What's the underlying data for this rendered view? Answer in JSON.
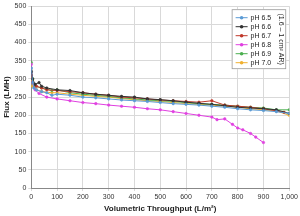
{
  "chart_data": {
    "type": "line",
    "x_label": "Volumetric Throughput (L/m²)",
    "y_label": "Flux (LMH)",
    "xlim": [
      0,
      1000
    ],
    "xticks": [
      0,
      100,
      200,
      300,
      400,
      500,
      600,
      700,
      800,
      900,
      {
        "value": 1000,
        "label": "1,000"
      }
    ],
    "ylim": [
      0,
      500
    ],
    "yticks": [
      0,
      50,
      100,
      150,
      200,
      250,
      300,
      350,
      400,
      450,
      500
    ],
    "grid": true,
    "legend": "upper right",
    "marker": "circle",
    "line_style": "solid",
    "annotations": [
      {
        "text": "(1.6 – 1 cm² AR)"
      }
    ],
    "series": [
      {
        "name": "pH 6.5",
        "color": "#5b9bd5",
        "x": [
          0,
          5,
          10,
          20,
          40,
          60,
          80,
          100,
          150,
          200,
          250,
          300,
          350,
          400,
          450,
          500,
          550,
          600,
          650,
          700,
          750,
          800,
          850,
          900,
          950,
          1000
        ],
        "values": [
          330,
          290,
          275,
          270,
          265,
          262,
          255,
          258,
          255,
          250,
          248,
          245,
          242,
          240,
          238,
          235,
          232,
          230,
          228,
          225,
          222,
          218,
          215,
          213,
          210,
          205
        ]
      },
      {
        "name": "pH 6.6",
        "color": "#333333",
        "x": [
          0,
          5,
          15,
          30,
          40,
          60,
          100,
          150,
          200,
          250,
          300,
          350,
          400,
          450,
          500,
          550,
          600,
          650,
          700,
          750,
          800,
          850,
          900,
          950,
          1000
        ],
        "values": [
          320,
          300,
          285,
          290,
          280,
          275,
          270,
          268,
          262,
          258,
          255,
          252,
          250,
          245,
          243,
          240,
          236,
          233,
          230,
          226,
          222,
          220,
          218,
          215,
          205
        ]
      },
      {
        "name": "pH 6.7",
        "color": "#c0392b",
        "x": [
          0,
          5,
          20,
          40,
          60,
          100,
          150,
          200,
          250,
          300,
          350,
          400,
          450,
          500,
          550,
          600,
          650,
          700,
          750,
          800,
          850,
          900,
          950,
          980
        ],
        "values": [
          310,
          290,
          280,
          275,
          270,
          268,
          265,
          262,
          258,
          255,
          250,
          248,
          245,
          242,
          240,
          238,
          236,
          240,
          228,
          225,
          222,
          218,
          212,
          208
        ]
      },
      {
        "name": "pH 6.8",
        "color": "#e040e0",
        "x": [
          0,
          5,
          15,
          30,
          60,
          100,
          150,
          200,
          250,
          300,
          350,
          400,
          450,
          500,
          550,
          600,
          650,
          700,
          720,
          750,
          780,
          800,
          820,
          850,
          870,
          900
        ],
        "values": [
          340,
          290,
          270,
          260,
          250,
          245,
          240,
          235,
          232,
          228,
          225,
          222,
          218,
          215,
          210,
          205,
          200,
          195,
          188,
          190,
          175,
          165,
          160,
          150,
          140,
          125
        ]
      },
      {
        "name": "pH 6.9",
        "color": "#4caf50",
        "x": [
          0,
          5,
          15,
          40,
          80,
          100,
          150,
          200,
          250,
          300,
          350,
          400,
          450,
          500,
          550,
          600,
          650,
          700,
          750,
          800,
          850,
          900,
          950,
          1000
        ],
        "values": [
          345,
          300,
          280,
          275,
          268,
          270,
          262,
          258,
          255,
          252,
          248,
          245,
          242,
          240,
          238,
          235,
          232,
          230,
          228,
          225,
          222,
          220,
          215,
          215
        ]
      },
      {
        "name": "pH 7.0",
        "color": "#f0b030",
        "x": [
          0,
          5,
          20,
          40,
          80,
          100,
          150,
          200,
          250,
          300,
          350,
          400,
          450,
          500,
          550,
          600,
          650,
          700,
          750,
          800,
          850,
          900,
          950,
          1000
        ],
        "values": [
          300,
          280,
          270,
          265,
          262,
          262,
          258,
          255,
          252,
          250,
          246,
          243,
          240,
          238,
          235,
          232,
          230,
          228,
          225,
          222,
          218,
          215,
          212,
          200
        ]
      }
    ]
  }
}
